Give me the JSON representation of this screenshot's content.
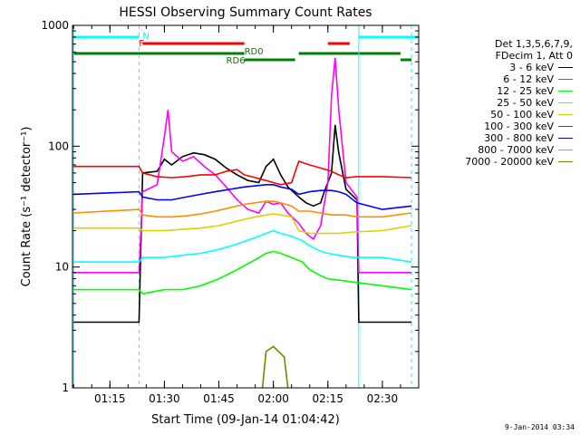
{
  "chart_data": {
    "type": "line",
    "title": "HESSI Observing Summary Count Rates",
    "xlabel": "Start Time (09-Jan-14 01:04:42)",
    "ylabel": "Count Rate (s⁻¹ detector⁻¹)",
    "yscale": "log",
    "ylim": [
      1,
      1000
    ],
    "xlim": [
      "01:04:42",
      "02:40:00"
    ],
    "x_ticks": [
      "01:15",
      "01:30",
      "01:45",
      "02:00",
      "02:15",
      "02:30"
    ],
    "y_ticks": [
      "1",
      "10",
      "100",
      "1000"
    ],
    "legend_header": [
      "Det 1,3,5,6,7,9,",
      "FDecim 1, Att 0"
    ],
    "legend_position": "right",
    "series": [
      {
        "name": "3 - 6 keV",
        "color": "#000000",
        "points": [
          [
            "01:05",
            3.5
          ],
          [
            "01:23",
            3.5
          ],
          [
            "01:24",
            60
          ],
          [
            "01:28",
            62
          ],
          [
            "01:30",
            78
          ],
          [
            "01:32",
            70
          ],
          [
            "01:35",
            82
          ],
          [
            "01:38",
            88
          ],
          [
            "01:41",
            85
          ],
          [
            "01:44",
            78
          ],
          [
            "01:47",
            66
          ],
          [
            "01:50",
            58
          ],
          [
            "01:53",
            52
          ],
          [
            "01:56",
            50
          ],
          [
            "01:58",
            68
          ],
          [
            "02:00",
            78
          ],
          [
            "02:02",
            58
          ],
          [
            "02:04",
            46
          ],
          [
            "02:07",
            38
          ],
          [
            "02:09",
            34
          ],
          [
            "02:11",
            32
          ],
          [
            "02:13",
            34
          ],
          [
            "02:14",
            42
          ],
          [
            "02:16",
            60
          ],
          [
            "02:17",
            150
          ],
          [
            "02:18",
            88
          ],
          [
            "02:20",
            44
          ],
          [
            "02:23",
            36
          ],
          [
            "02:23.5",
            3.5
          ],
          [
            "02:38",
            3.5
          ]
        ]
      },
      {
        "name": "6 - 12 keV",
        "color": "#ff00ff",
        "points": [
          [
            "01:05",
            9
          ],
          [
            "01:23",
            9
          ],
          [
            "01:24",
            42
          ],
          [
            "01:28",
            48
          ],
          [
            "01:30",
            120
          ],
          [
            "01:31",
            200
          ],
          [
            "01:32",
            90
          ],
          [
            "01:35",
            75
          ],
          [
            "01:38",
            82
          ],
          [
            "01:41",
            68
          ],
          [
            "01:44",
            58
          ],
          [
            "01:47",
            46
          ],
          [
            "01:50",
            36
          ],
          [
            "01:53",
            30
          ],
          [
            "01:56",
            28
          ],
          [
            "01:58",
            35
          ],
          [
            "02:00",
            33
          ],
          [
            "02:02",
            34
          ],
          [
            "02:04",
            28
          ],
          [
            "02:07",
            23
          ],
          [
            "02:09",
            19
          ],
          [
            "02:11",
            17
          ],
          [
            "02:13",
            22
          ],
          [
            "02:15",
            50
          ],
          [
            "02:16",
            260
          ],
          [
            "02:17",
            540
          ],
          [
            "02:18",
            200
          ],
          [
            "02:20",
            50
          ],
          [
            "02:23",
            38
          ],
          [
            "02:23.5",
            9
          ],
          [
            "02:38",
            9
          ]
        ]
      },
      {
        "name": "12 - 25 keV",
        "color": "#00ff00",
        "points": [
          [
            "01:05",
            6.5
          ],
          [
            "01:23",
            6.5
          ],
          [
            "01:24",
            6
          ],
          [
            "01:30",
            6.5
          ],
          [
            "01:35",
            6.5
          ],
          [
            "01:40",
            7
          ],
          [
            "01:45",
            8
          ],
          [
            "01:50",
            9.5
          ],
          [
            "01:55",
            11.5
          ],
          [
            "01:58",
            13
          ],
          [
            "02:00",
            13.5
          ],
          [
            "02:02",
            13
          ],
          [
            "02:05",
            12
          ],
          [
            "02:08",
            11
          ],
          [
            "02:10",
            9.5
          ],
          [
            "02:13",
            8.5
          ],
          [
            "02:15",
            8
          ],
          [
            "02:18",
            7.8
          ],
          [
            "02:22",
            7.5
          ],
          [
            "02:30",
            7
          ],
          [
            "02:38",
            6.5
          ]
        ]
      },
      {
        "name": "25 - 50 keV",
        "color": "#00ffff",
        "points": [
          [
            "01:05",
            11
          ],
          [
            "01:23",
            11
          ],
          [
            "01:24",
            12
          ],
          [
            "01:30",
            12
          ],
          [
            "01:35",
            12.5
          ],
          [
            "01:40",
            13
          ],
          [
            "01:45",
            14
          ],
          [
            "01:50",
            15.5
          ],
          [
            "01:55",
            17.5
          ],
          [
            "01:58",
            19
          ],
          [
            "02:00",
            20
          ],
          [
            "02:02",
            19
          ],
          [
            "02:05",
            18
          ],
          [
            "02:08",
            16.5
          ],
          [
            "02:10",
            15
          ],
          [
            "02:13",
            13.5
          ],
          [
            "02:15",
            13
          ],
          [
            "02:18",
            12.5
          ],
          [
            "02:22",
            12
          ],
          [
            "02:30",
            12
          ],
          [
            "02:38",
            11
          ]
        ]
      },
      {
        "name": "50 - 100 keV",
        "color": "#d4d400",
        "points": [
          [
            "01:05",
            21
          ],
          [
            "01:23",
            21
          ],
          [
            "01:24",
            20
          ],
          [
            "01:30",
            20
          ],
          [
            "01:35",
            20.5
          ],
          [
            "01:40",
            21
          ],
          [
            "01:45",
            22
          ],
          [
            "01:50",
            24
          ],
          [
            "01:55",
            26
          ],
          [
            "01:58",
            27
          ],
          [
            "02:00",
            27.5
          ],
          [
            "02:02",
            27
          ],
          [
            "02:05",
            26
          ],
          [
            "02:07",
            20
          ],
          [
            "02:10",
            19
          ],
          [
            "02:13",
            19
          ],
          [
            "02:15",
            19
          ],
          [
            "02:18",
            19
          ],
          [
            "02:22",
            19.5
          ],
          [
            "02:30",
            20
          ],
          [
            "02:38",
            22
          ]
        ]
      },
      {
        "name": "100 - 300 keV",
        "color": "#ff0000",
        "points": [
          [
            "01:05",
            68
          ],
          [
            "01:23",
            68
          ],
          [
            "01:24",
            60
          ],
          [
            "01:28",
            56
          ],
          [
            "01:32",
            55
          ],
          [
            "01:36",
            56
          ],
          [
            "01:40",
            58
          ],
          [
            "01:44",
            58
          ],
          [
            "01:47",
            62
          ],
          [
            "01:50",
            64
          ],
          [
            "01:52",
            58
          ],
          [
            "01:55",
            55
          ],
          [
            "01:58",
            52
          ],
          [
            "02:00",
            50
          ],
          [
            "02:02",
            48
          ],
          [
            "02:05",
            50
          ],
          [
            "02:07",
            75
          ],
          [
            "02:10",
            70
          ],
          [
            "02:13",
            66
          ],
          [
            "02:16",
            62
          ],
          [
            "02:18",
            58
          ],
          [
            "02:20",
            55
          ],
          [
            "02:23",
            56
          ],
          [
            "02:30",
            56
          ],
          [
            "02:38",
            55
          ]
        ]
      },
      {
        "name": "300 - 800 keV",
        "color": "#0000ff",
        "points": [
          [
            "01:05",
            40
          ],
          [
            "01:23",
            42
          ],
          [
            "01:24",
            38
          ],
          [
            "01:28",
            36
          ],
          [
            "01:32",
            36
          ],
          [
            "01:36",
            38
          ],
          [
            "01:40",
            40
          ],
          [
            "01:44",
            42
          ],
          [
            "01:48",
            44
          ],
          [
            "01:52",
            46
          ],
          [
            "01:55",
            47
          ],
          [
            "01:58",
            48
          ],
          [
            "02:00",
            48
          ],
          [
            "02:02",
            46
          ],
          [
            "02:05",
            44
          ],
          [
            "02:07",
            40
          ],
          [
            "02:10",
            42
          ],
          [
            "02:13",
            43
          ],
          [
            "02:16",
            43
          ],
          [
            "02:18",
            42
          ],
          [
            "02:20",
            40
          ],
          [
            "02:23",
            34
          ],
          [
            "02:30",
            30
          ],
          [
            "02:38",
            32
          ]
        ]
      },
      {
        "name": "800 - 7000 keV",
        "color": "#ff8c00",
        "points": [
          [
            "01:05",
            28
          ],
          [
            "01:23",
            30
          ],
          [
            "01:24",
            27
          ],
          [
            "01:28",
            26
          ],
          [
            "01:32",
            26
          ],
          [
            "01:36",
            26.5
          ],
          [
            "01:40",
            27.5
          ],
          [
            "01:44",
            29
          ],
          [
            "01:48",
            31
          ],
          [
            "01:52",
            33
          ],
          [
            "01:55",
            34
          ],
          [
            "01:58",
            35
          ],
          [
            "02:00",
            35
          ],
          [
            "02:02",
            34
          ],
          [
            "02:05",
            32
          ],
          [
            "02:07",
            29
          ],
          [
            "02:10",
            29
          ],
          [
            "02:13",
            28
          ],
          [
            "02:16",
            27
          ],
          [
            "02:20",
            27
          ],
          [
            "02:23",
            26
          ],
          [
            "02:30",
            26
          ],
          [
            "02:38",
            28
          ]
        ]
      },
      {
        "name": "7000 - 20000 keV",
        "color": "#808000",
        "points": [
          [
            "01:57",
            1
          ],
          [
            "01:58",
            2
          ],
          [
            "02:00",
            2.2
          ],
          [
            "02:03",
            1.8
          ],
          [
            "02:04",
            1
          ]
        ]
      }
    ],
    "annotations": [
      "N",
      "F",
      "RD0",
      "RD6"
    ]
  },
  "stamp": "9-Jan-2014 03:34"
}
